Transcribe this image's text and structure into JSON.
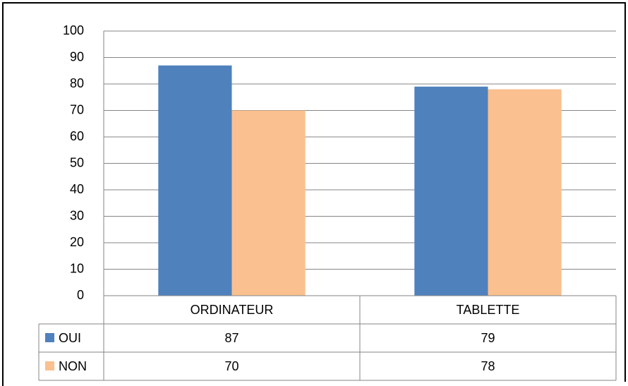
{
  "chart_data": {
    "type": "bar",
    "categories": [
      "ORDINATEUR",
      "TABLETTE"
    ],
    "series": [
      {
        "name": "OUI",
        "color": "#4f81bd",
        "values": [
          87,
          79
        ]
      },
      {
        "name": "NON",
        "color": "#fac090",
        "values": [
          70,
          78
        ]
      }
    ],
    "ylim": [
      0,
      100
    ],
    "yticks": [
      0,
      10,
      20,
      30,
      40,
      50,
      60,
      70,
      80,
      90,
      100
    ],
    "grid": true,
    "data_table": true
  }
}
